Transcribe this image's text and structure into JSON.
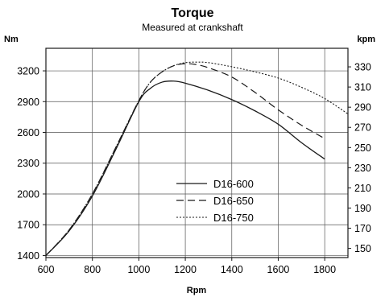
{
  "chart_data": {
    "type": "line",
    "title": "Torque",
    "subtitle": "Measured at crankshaft",
    "xlabel": "Rpm",
    "ylabel": "Nm",
    "y2label": "kpm",
    "xlim": [
      600,
      1900
    ],
    "ylim": [
      1380,
      3420
    ],
    "y2lim": [
      140.9,
      348.4
    ],
    "x_ticks": [
      600,
      800,
      1000,
      1200,
      1400,
      1600,
      1800
    ],
    "y_ticks": [
      1400,
      1700,
      2000,
      2300,
      2600,
      2900,
      3200
    ],
    "y2_ticks": [
      150,
      170,
      190,
      210,
      230,
      250,
      270,
      290,
      310,
      330
    ],
    "grid": true,
    "legend_position": "center",
    "series": [
      {
        "name": "D16-600",
        "style": "solid",
        "x": [
          600,
          700,
          800,
          900,
          1000,
          1050,
          1100,
          1150,
          1200,
          1300,
          1400,
          1500,
          1600,
          1700,
          1800
        ],
        "y": [
          1400,
          1640,
          1980,
          2430,
          2900,
          3030,
          3090,
          3100,
          3080,
          3010,
          2920,
          2810,
          2680,
          2500,
          2340
        ]
      },
      {
        "name": "D16-650",
        "style": "dashed",
        "x": [
          600,
          700,
          800,
          900,
          1000,
          1050,
          1100,
          1150,
          1200,
          1250,
          1300,
          1400,
          1500,
          1600,
          1700,
          1800
        ],
        "y": [
          1400,
          1650,
          2000,
          2450,
          2910,
          3090,
          3190,
          3250,
          3270,
          3260,
          3230,
          3140,
          2990,
          2820,
          2670,
          2540
        ]
      },
      {
        "name": "D16-750",
        "style": "dotted",
        "x": [
          600,
          700,
          800,
          900,
          1000,
          1050,
          1100,
          1150,
          1200,
          1250,
          1300,
          1400,
          1500,
          1600,
          1700,
          1800,
          1900
        ],
        "y": [
          1400,
          1650,
          2000,
          2450,
          2910,
          3090,
          3190,
          3250,
          3280,
          3285,
          3280,
          3240,
          3190,
          3130,
          3040,
          2930,
          2780
        ]
      }
    ]
  }
}
